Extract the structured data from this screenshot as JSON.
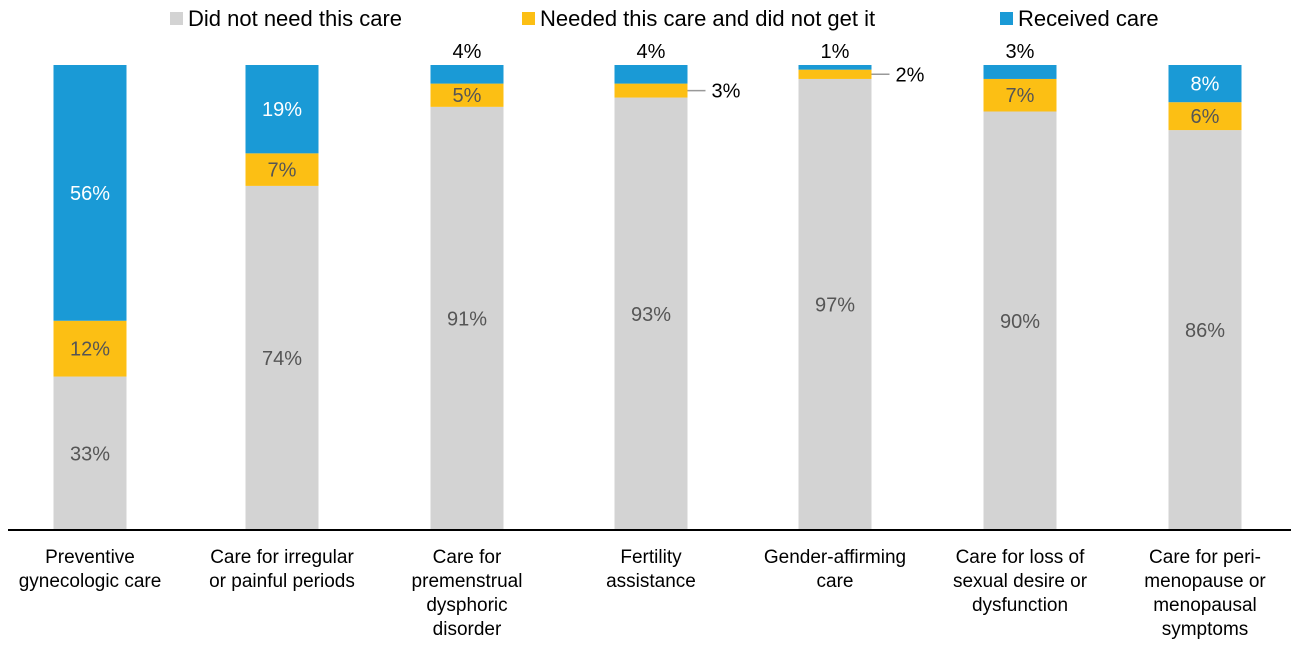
{
  "chart_data": {
    "type": "bar",
    "stacked": true,
    "categories": [
      [
        "Preventive",
        "gynecologic care"
      ],
      [
        "Care for irregular",
        "or painful periods"
      ],
      [
        "Care for",
        "premenstrual",
        "dysphoric",
        "disorder"
      ],
      [
        "Fertility",
        "assistance"
      ],
      [
        "Gender-affirming",
        "care"
      ],
      [
        "Care for loss of",
        "sexual desire or",
        "dysfunction"
      ],
      [
        "Care for peri-",
        "menopause or",
        "menopausal",
        "symptoms"
      ]
    ],
    "series": [
      {
        "name": "Did not need this care",
        "color": "#d3d3d3",
        "values": [
          33,
          74,
          91,
          93,
          97,
          90,
          86
        ],
        "labels": [
          "33%",
          "74%",
          "91%",
          "93%",
          "97%",
          "90%",
          "86%"
        ]
      },
      {
        "name": "Needed this care and did not get it",
        "color": "#fcbf14",
        "values": [
          12,
          7,
          5,
          3,
          2,
          7,
          6
        ],
        "labels": [
          "12%",
          "7%",
          "5%",
          "3%",
          "2%",
          "7%",
          "6%"
        ]
      },
      {
        "name": "Received care",
        "color": "#1a9ad6",
        "values": [
          56,
          19,
          4,
          4,
          1,
          3,
          8
        ],
        "labels": [
          "56%",
          "19%",
          "4%",
          "4%",
          "1%",
          "3%",
          "8%"
        ]
      }
    ],
    "ylim": [
      0,
      100
    ],
    "legend": "top",
    "grid": false
  }
}
